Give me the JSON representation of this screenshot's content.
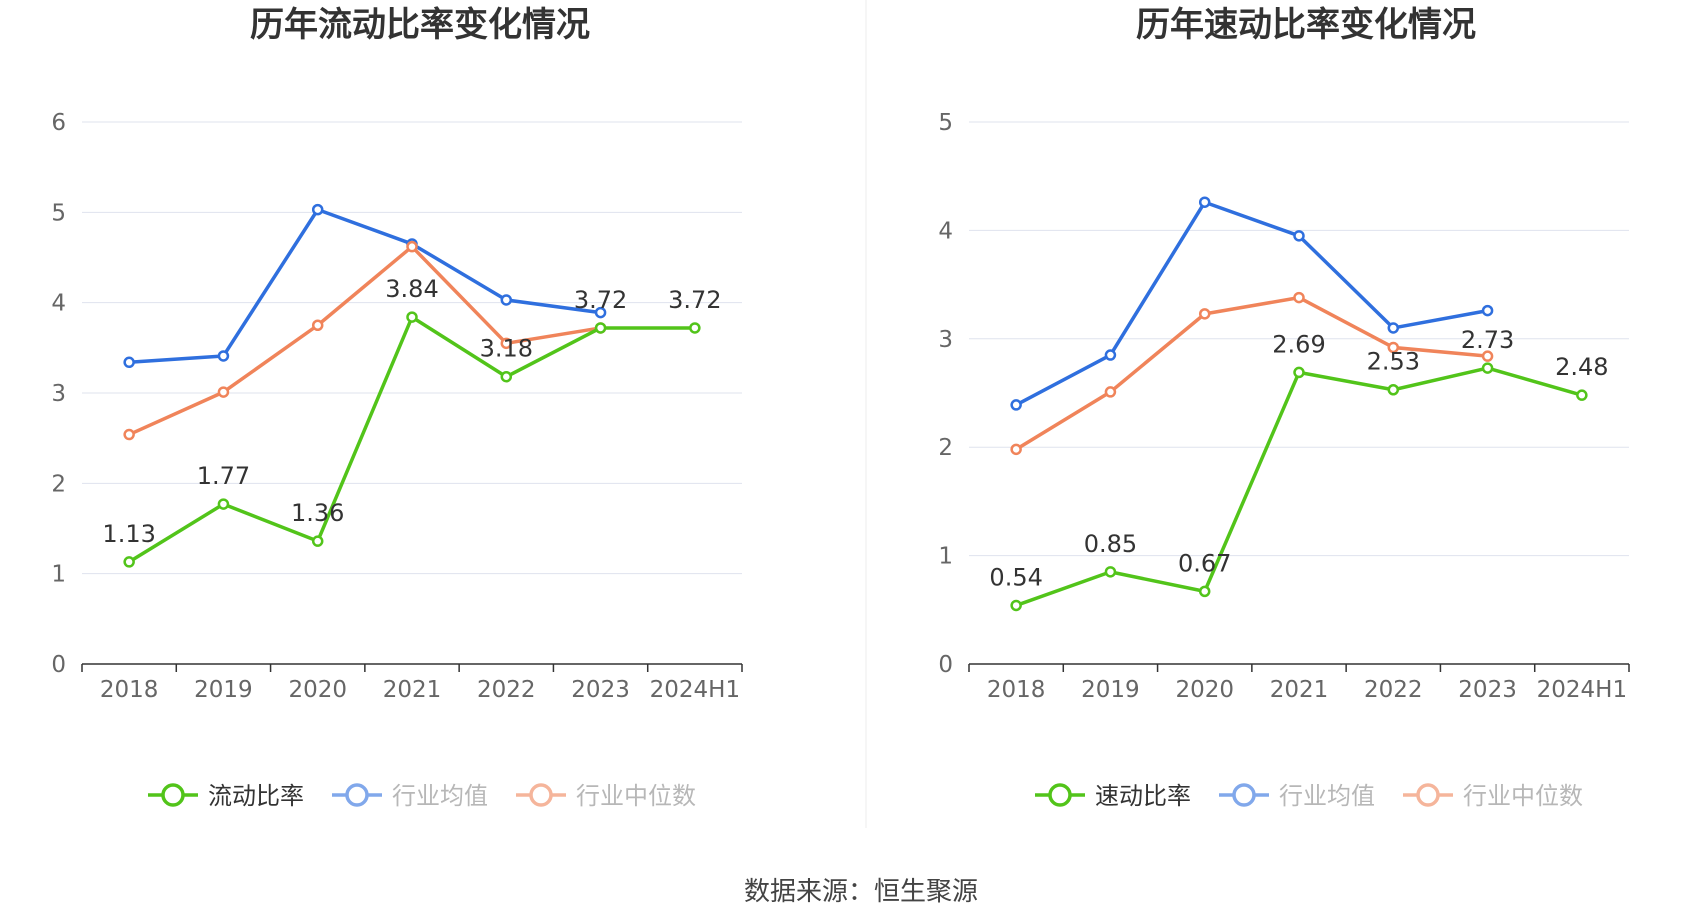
{
  "source": "数据来源：恒生聚源",
  "colors": {
    "company": "#52c41a",
    "avg": "#2f6fde",
    "median": "#f0845a",
    "grid": "#dfe3ee",
    "axis": "#333333"
  },
  "chart_data": [
    {
      "type": "line",
      "title": "历年流动比率变化情况",
      "categories": [
        "2018",
        "2019",
        "2020",
        "2021",
        "2022",
        "2023",
        "2024H1"
      ],
      "ylim": [
        0,
        6
      ],
      "yticks": [
        "0",
        "1",
        "2",
        "3",
        "4",
        "5",
        "6"
      ],
      "grid": true,
      "legend_position": "bottom",
      "series": [
        {
          "name": "流动比率",
          "key": "company",
          "values": [
            1.13,
            1.77,
            1.36,
            3.84,
            3.18,
            3.72,
            3.72
          ],
          "labels": [
            "1.13",
            "1.77",
            "1.36",
            "3.84",
            "3.18",
            "3.72",
            "3.72"
          ]
        },
        {
          "name": "行业均值",
          "key": "avg",
          "values": [
            3.34,
            3.41,
            5.03,
            4.65,
            4.03,
            3.89,
            null
          ]
        },
        {
          "name": "行业中位数",
          "key": "median",
          "values": [
            2.54,
            3.01,
            3.75,
            4.62,
            3.55,
            3.72,
            null
          ]
        }
      ]
    },
    {
      "type": "line",
      "title": "历年速动比率变化情况",
      "categories": [
        "2018",
        "2019",
        "2020",
        "2021",
        "2022",
        "2023",
        "2024H1"
      ],
      "ylim": [
        0,
        5
      ],
      "yticks": [
        "0",
        "1",
        "2",
        "3",
        "4",
        "5"
      ],
      "grid": true,
      "legend_position": "bottom",
      "series": [
        {
          "name": "速动比率",
          "key": "company",
          "values": [
            0.54,
            0.85,
            0.67,
            2.69,
            2.53,
            2.73,
            2.48
          ],
          "labels": [
            "0.54",
            "0.85",
            "0.67",
            "2.69",
            "2.53",
            "2.73",
            "2.48"
          ]
        },
        {
          "name": "行业均值",
          "key": "avg",
          "values": [
            2.39,
            2.85,
            4.26,
            3.95,
            3.1,
            3.26,
            null
          ]
        },
        {
          "name": "行业中位数",
          "key": "median",
          "values": [
            1.98,
            2.51,
            3.23,
            3.38,
            2.92,
            2.84,
            null
          ]
        }
      ]
    }
  ]
}
